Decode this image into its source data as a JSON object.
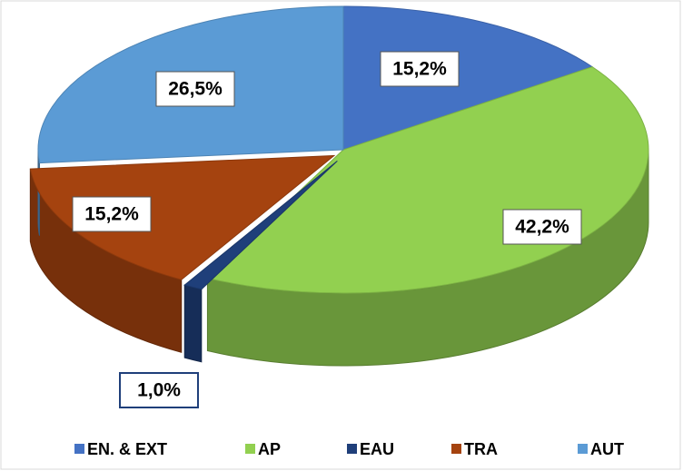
{
  "chart_data": {
    "type": "pie",
    "categories": [
      "EN. & EXT",
      "AP",
      "EAU",
      "TRA",
      "AUT"
    ],
    "values": [
      15.2,
      42.2,
      1.0,
      15.2,
      26.5
    ],
    "value_labels": [
      "15,2%",
      "42,2%",
      "1,0%",
      "15,2%",
      "26,5%"
    ],
    "colors": [
      "#4472c4",
      "#92d050",
      "#1f3f7a",
      "#a5430f",
      "#5b9bd5"
    ],
    "legend": "bottom"
  }
}
